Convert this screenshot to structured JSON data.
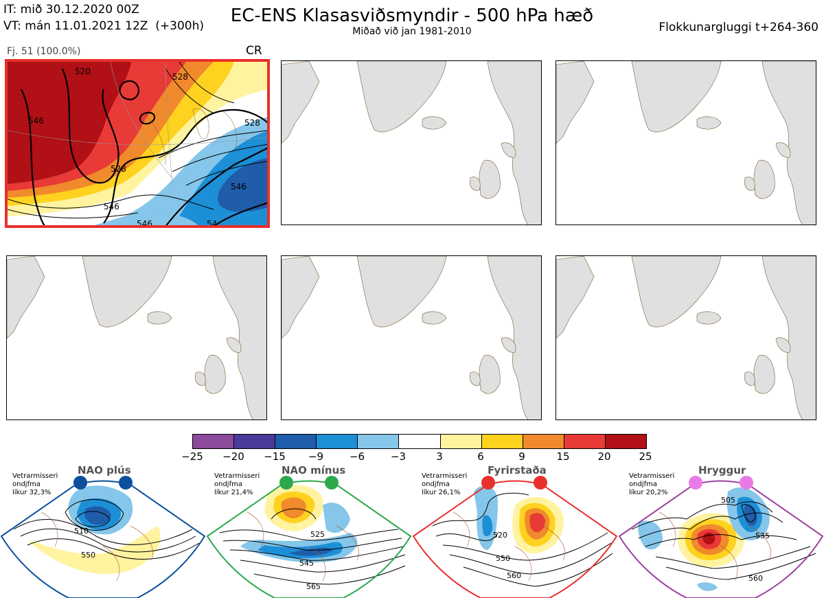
{
  "header": {
    "init_line": "IT: mið 30.12.2020 00Z",
    "valid_line": "VT: mán 11.01.2021 12Z  (+300h)",
    "title": "EC-ENS Klasasviðsmyndir - 500 hPa hæð",
    "subtitle": "Miðað við jan 1981-2010",
    "window": "Flokkunargluggi t+264-360"
  },
  "panels": [
    {
      "label": "Fj. 51 (100.0%)",
      "code": "CR",
      "selected": true,
      "contour_labels": [
        "520",
        "528",
        "546",
        "528",
        "546",
        "528",
        "546",
        "546",
        "54"
      ]
    },
    {
      "label": "",
      "code": "",
      "selected": false
    },
    {
      "label": "",
      "code": "",
      "selected": false
    },
    {
      "label": "",
      "code": "",
      "selected": false
    },
    {
      "label": "",
      "code": "",
      "selected": false
    },
    {
      "label": "",
      "code": "",
      "selected": false
    }
  ],
  "colorbar": {
    "colors": [
      "#8c4a9c",
      "#4b3a9a",
      "#1f5ca9",
      "#1d8fd6",
      "#85c6ea",
      "#ffffff",
      "#fff3a0",
      "#ffd21f",
      "#f08a2c",
      "#e83a36",
      "#b01016"
    ],
    "ticks": [
      "−25",
      "−20",
      "−15",
      "−9",
      "−6",
      "−3",
      "3",
      "6",
      "9",
      "15",
      "20",
      "25"
    ]
  },
  "regimes": [
    {
      "name": "NAO plús",
      "season": "Vetrarmisseri",
      "type": "ondjfma",
      "prob": "líkur 32,3%",
      "color": "#0b4f9c",
      "contours": [
        "510",
        "550"
      ]
    },
    {
      "name": "NAO mínus",
      "season": "Vetrarmisseri",
      "type": "ondjfma",
      "prob": "líkur 21,4%",
      "color": "#2ca84a",
      "contours": [
        "525",
        "545",
        "565"
      ]
    },
    {
      "name": "Fyrirstaða",
      "season": "Vetrarmisseri",
      "type": "ondjfma",
      "prob": "líkur 26,1%",
      "color": "#e8302b",
      "contours": [
        "520",
        "550",
        "560"
      ]
    },
    {
      "name": "Hryggur",
      "season": "Vetrarmisseri",
      "type": "ondjfma",
      "prob": "líkur 20,2%",
      "color": "#9b3fa0",
      "contours": [
        "505",
        "535",
        "560"
      ]
    }
  ]
}
